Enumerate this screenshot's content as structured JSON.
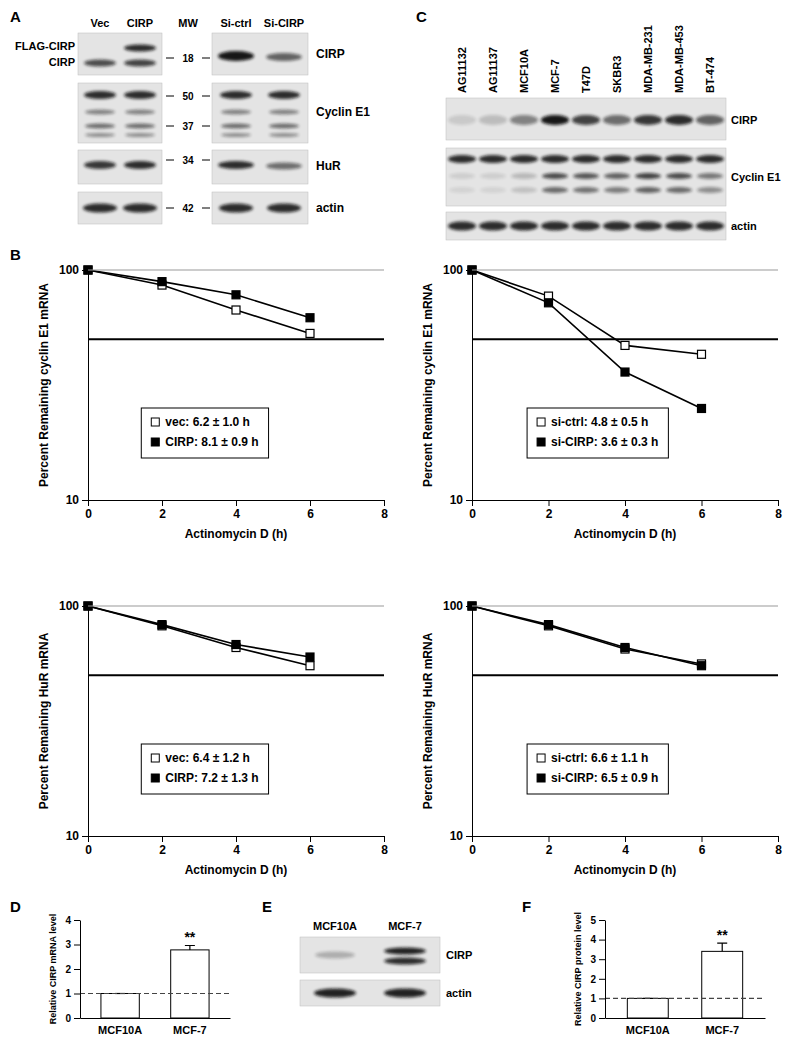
{
  "panel_labels": [
    "A",
    "B",
    "C",
    "D",
    "E",
    "F"
  ],
  "blots": {
    "A": {
      "columns": [
        "Vec",
        "CIRP",
        "MW",
        "Si-ctrl",
        "Si-CIRP"
      ],
      "left_labels": [
        "FLAG-CIRP",
        "CIRP"
      ],
      "mw_markers": [
        18,
        50,
        37,
        34,
        42
      ],
      "rows": [
        "CIRP",
        "Cyclin E1",
        "HuR",
        "actin"
      ]
    },
    "C": {
      "columns": [
        "AG11132",
        "AG11137",
        "MCF10A",
        "MCF-7",
        "T47D",
        "SKBR3",
        "MDA-MB-231",
        "MDA-MB-453",
        "BT-474"
      ],
      "rows": [
        "CIRP",
        "Cyclin E1",
        "actin"
      ]
    },
    "E": {
      "columns": [
        "MCF10A",
        "MCF-7"
      ],
      "rows": [
        "CIRP",
        "actin"
      ]
    }
  },
  "chart_data": [
    {
      "type": "line",
      "log": "y",
      "x": [
        0,
        2,
        4,
        6
      ],
      "xlim": [
        0,
        8
      ],
      "xticks": [
        0,
        2,
        4,
        6,
        8
      ],
      "ylim": [
        10,
        100
      ],
      "yticks": [
        10,
        100
      ],
      "xlabel": "Actinomycin D (h)",
      "ylabel": "Percent Remaining cyclin E1 mRNA",
      "threshold": 50,
      "series": [
        {
          "name": "vec: 6.2 ± 1.0 h",
          "color": "#000000",
          "marker": "square-open",
          "values": [
            100,
            86,
            67,
            53
          ]
        },
        {
          "name": "CIRP: 8.1 ± 0.9 h",
          "color": "#000000",
          "marker": "square",
          "values": [
            100,
            89,
            78,
            62
          ]
        }
      ]
    },
    {
      "type": "line",
      "log": "y",
      "x": [
        0,
        2,
        4,
        6
      ],
      "xlim": [
        0,
        8
      ],
      "xticks": [
        0,
        2,
        4,
        6,
        8
      ],
      "ylim": [
        10,
        100
      ],
      "yticks": [
        10,
        100
      ],
      "xlabel": "Actinomycin D (h)",
      "ylabel": "Percent Remaining cyclin E1 mRNA",
      "threshold": 50,
      "series": [
        {
          "name": "si-ctrl: 4.8 ± 0.5 h",
          "color": "#000000",
          "marker": "square-open",
          "values": [
            100,
            77,
            47,
            43
          ]
        },
        {
          "name": "si-CIRP: 3.6 ± 0.3 h",
          "color": "#000000",
          "marker": "square",
          "values": [
            100,
            72,
            36,
            25
          ]
        }
      ]
    },
    {
      "type": "line",
      "log": "y",
      "x": [
        0,
        2,
        4,
        6
      ],
      "xlim": [
        0,
        8
      ],
      "xticks": [
        0,
        2,
        4,
        6,
        8
      ],
      "ylim": [
        10,
        100
      ],
      "yticks": [
        10,
        100
      ],
      "xlabel": "Actinomycin D (h)",
      "ylabel": "Percent Remaining HuR mRNA",
      "threshold": 50,
      "series": [
        {
          "name": "vec: 6.4 ± 1.2 h",
          "color": "#000000",
          "marker": "square-open",
          "values": [
            100,
            82,
            66,
            55
          ]
        },
        {
          "name": "CIRP: 7.2 ± 1.3 h",
          "color": "#000000",
          "marker": "square",
          "values": [
            100,
            83,
            68,
            60
          ]
        }
      ]
    },
    {
      "type": "line",
      "log": "y",
      "x": [
        0,
        2,
        4,
        6
      ],
      "xlim": [
        0,
        8
      ],
      "xticks": [
        0,
        2,
        4,
        6,
        8
      ],
      "ylim": [
        10,
        100
      ],
      "yticks": [
        10,
        100
      ],
      "xlabel": "Actinomycin D (h)",
      "ylabel": "Percent Remaining HuR mRNA",
      "threshold": 50,
      "series": [
        {
          "name": "si-ctrl: 6.6 ± 1.1 h",
          "color": "#000000",
          "marker": "square-open",
          "values": [
            100,
            82,
            65,
            56
          ]
        },
        {
          "name": "si-CIRP: 6.5 ± 0.9 h",
          "color": "#000000",
          "marker": "square",
          "values": [
            100,
            83,
            66,
            55
          ]
        }
      ]
    },
    {
      "type": "bar",
      "categories": [
        "MCF10A",
        "MCF-7"
      ],
      "values": [
        1,
        2.78
      ],
      "errors": [
        0,
        0.18
      ],
      "ylim": [
        0,
        4
      ],
      "yticks": [
        0,
        1,
        2,
        3,
        4
      ],
      "ylabel": "Relative CIRP mRNA level",
      "threshold": 1,
      "color": "#ffffff",
      "annotations": [
        {
          "x": "MCF-7",
          "text": "**"
        }
      ]
    },
    {
      "type": "bar",
      "categories": [
        "MCF10A",
        "MCF-7"
      ],
      "values": [
        1,
        3.4
      ],
      "errors": [
        0,
        0.42
      ],
      "ylim": [
        0,
        5
      ],
      "yticks": [
        0,
        1,
        2,
        3,
        4,
        5
      ],
      "ylabel": "Relative CIRP protein level",
      "threshold": 1,
      "color": "#ffffff",
      "annotations": [
        {
          "x": "MCF-7",
          "text": "**"
        }
      ]
    }
  ]
}
